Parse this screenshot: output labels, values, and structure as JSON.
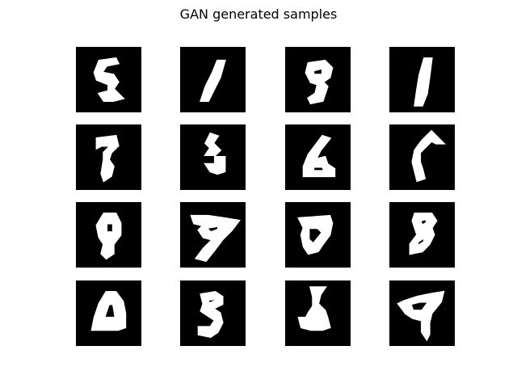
{
  "title": "GAN generated samples",
  "grid": {
    "rows": 4,
    "cols": 4
  },
  "colors": {
    "background": "#ffffff",
    "tile": "#000000",
    "stroke": "#ffffff"
  },
  "samples": [
    {
      "index": 0,
      "apparent_digit": "5"
    },
    {
      "index": 1,
      "apparent_digit": "1"
    },
    {
      "index": 2,
      "apparent_digit": "9"
    },
    {
      "index": 3,
      "apparent_digit": "1"
    },
    {
      "index": 4,
      "apparent_digit": "7"
    },
    {
      "index": 5,
      "apparent_digit": "3"
    },
    {
      "index": 6,
      "apparent_digit": "6"
    },
    {
      "index": 7,
      "apparent_digit": "1"
    },
    {
      "index": 8,
      "apparent_digit": "9"
    },
    {
      "index": 9,
      "apparent_digit": "7"
    },
    {
      "index": 10,
      "apparent_digit": "9"
    },
    {
      "index": 11,
      "apparent_digit": "8"
    },
    {
      "index": 12,
      "apparent_digit": "0"
    },
    {
      "index": 13,
      "apparent_digit": "9"
    },
    {
      "index": 14,
      "apparent_digit": "1"
    },
    {
      "index": 15,
      "apparent_digit": "4"
    }
  ]
}
